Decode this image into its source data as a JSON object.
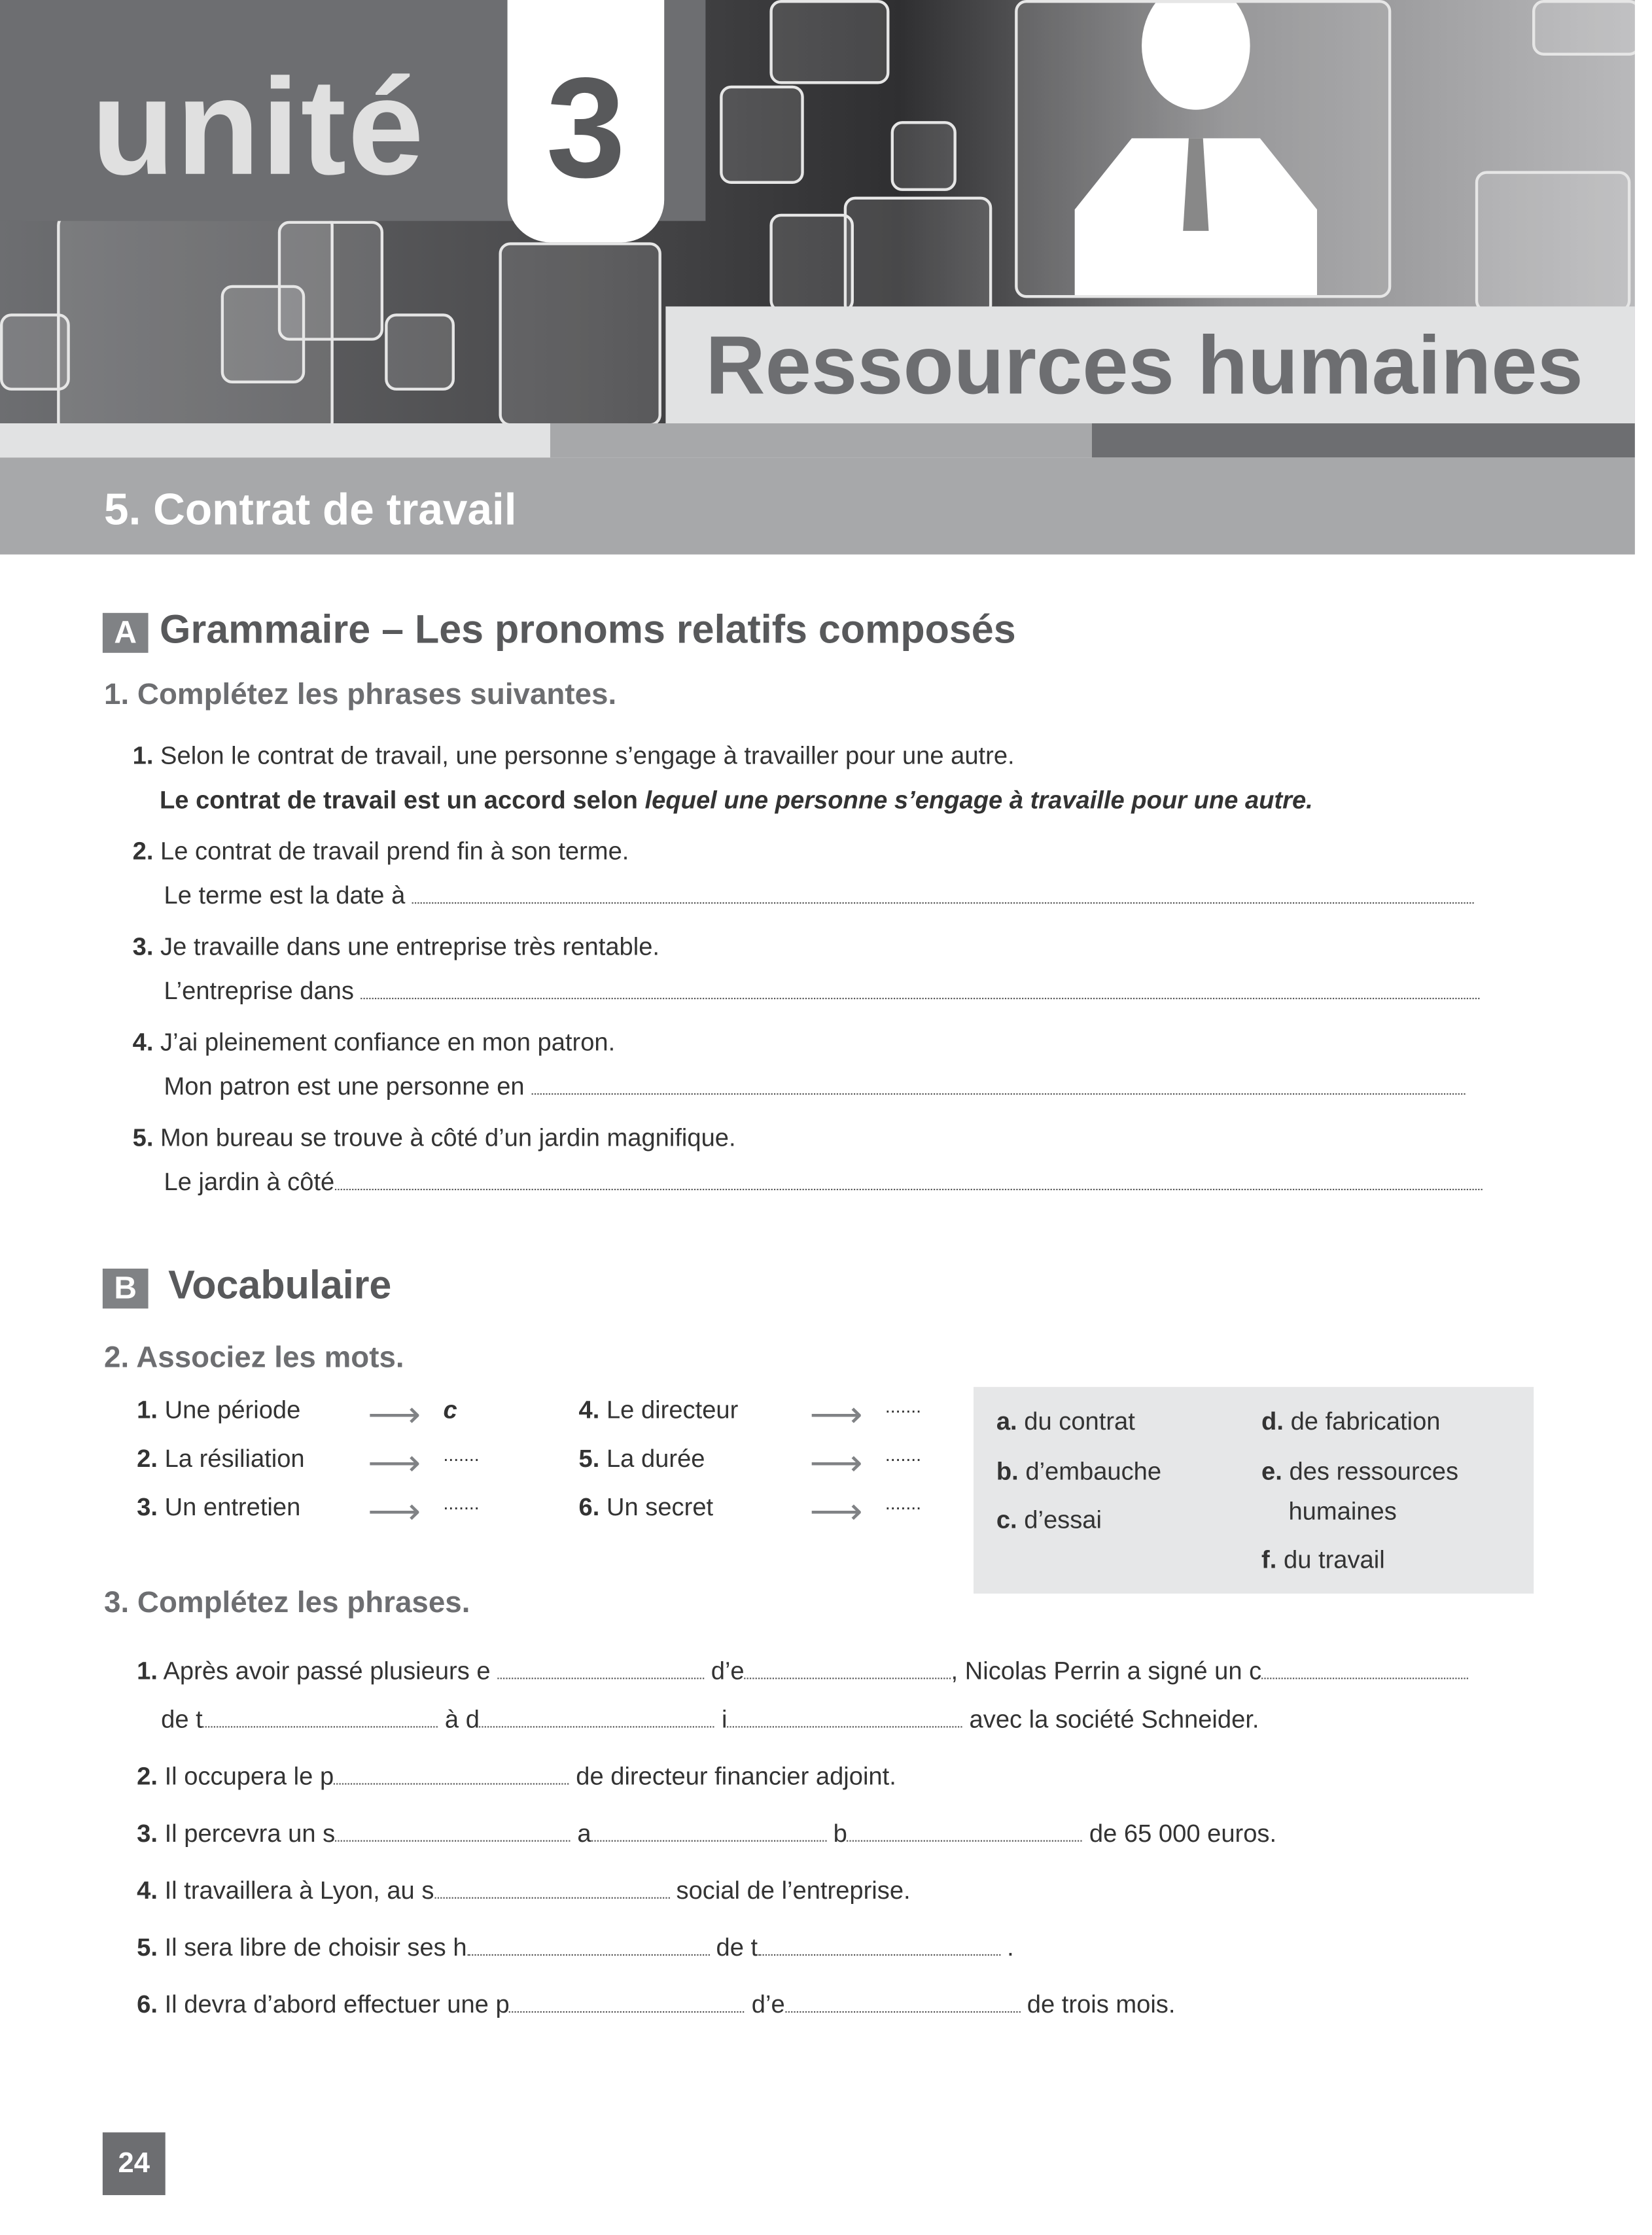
{
  "header": {
    "unit_word": "unité",
    "unit_number": "3",
    "unit_title": "Ressources humaines",
    "lesson_title": "5. Contrat de travail"
  },
  "section_a": {
    "badge": "A",
    "title": "Grammaire – Les pronoms relatifs composés",
    "exercise_title": "1. Complétez les phrases suivantes.",
    "items": [
      {
        "num": "1.",
        "sentence": "Selon le contrat de travail, une personne s’engage à travailler pour une autre.",
        "answer_start": "Le contrat de travail est un accord selon ",
        "answer_italic": "lequel une personne s’engage à travaille pour une autre."
      },
      {
        "num": "2.",
        "sentence": "Le contrat de travail prend fin à son terme.",
        "prompt": "Le terme est la date à"
      },
      {
        "num": "3.",
        "sentence": "Je travaille dans une entreprise très rentable.",
        "prompt": "L’entreprise dans"
      },
      {
        "num": "4.",
        "sentence": "J’ai pleinement confiance en mon patron.",
        "prompt": "Mon patron est une personne en"
      },
      {
        "num": "5.",
        "sentence": "Mon bureau se trouve à côté d’un jardin magnifique.",
        "prompt": "Le jardin à côté"
      }
    ]
  },
  "section_b": {
    "badge": "B",
    "title": "Vocabulaire",
    "exercise2_title": "2. Associez les mots.",
    "left_items": [
      {
        "num": "1.",
        "text": "Une période",
        "answer": "c"
      },
      {
        "num": "2.",
        "text": "La résiliation",
        "answer": "......."
      },
      {
        "num": "3.",
        "text": "Un entretien",
        "answer": "......."
      },
      {
        "num": "4.",
        "text": "Le directeur",
        "answer": "......."
      },
      {
        "num": "5.",
        "text": "La durée",
        "answer": "......."
      },
      {
        "num": "6.",
        "text": "Un secret",
        "answer": "......."
      }
    ],
    "right_items": [
      {
        "letter": "a.",
        "text": "du contrat"
      },
      {
        "letter": "b.",
        "text": "d’embauche"
      },
      {
        "letter": "c.",
        "text": "d’essai"
      },
      {
        "letter": "d.",
        "text": "de fabrication"
      },
      {
        "letter": "e.",
        "text": "des ressources",
        "text2": "humaines"
      },
      {
        "letter": "f.",
        "text": "du travail"
      }
    ],
    "exercise3_title": "3. Complétez les phrases.",
    "sentences": [
      {
        "num": "1.",
        "parts": [
          "Après avoir passé plusieurs e",
          "d’e",
          ", Nicolas Perrin a signé un c"
        ],
        "parts2": [
          "de t",
          "à d",
          "i",
          "avec la société Schneider."
        ]
      },
      {
        "num": "2.",
        "parts": [
          "Il occupera le p",
          "de directeur financier adjoint."
        ]
      },
      {
        "num": "3.",
        "parts": [
          "Il percevra un s",
          "a",
          "b",
          "de 65 000 euros."
        ]
      },
      {
        "num": "4.",
        "parts": [
          "Il travaillera à Lyon, au s",
          "social de l’entreprise."
        ]
      },
      {
        "num": "5.",
        "parts": [
          "Il sera libre de choisir ses h",
          "de t",
          "."
        ]
      },
      {
        "num": "6.",
        "parts": [
          "Il devra d’abord effectuer une p",
          "d’e",
          "de trois mois."
        ]
      }
    ]
  },
  "footer": {
    "page_number": "24"
  },
  "colors": {
    "dark_gray": "#6d6e71",
    "mid_gray": "#a7a8aa",
    "light_gray": "#e1e2e3",
    "box_gray": "#e6e7e8"
  }
}
